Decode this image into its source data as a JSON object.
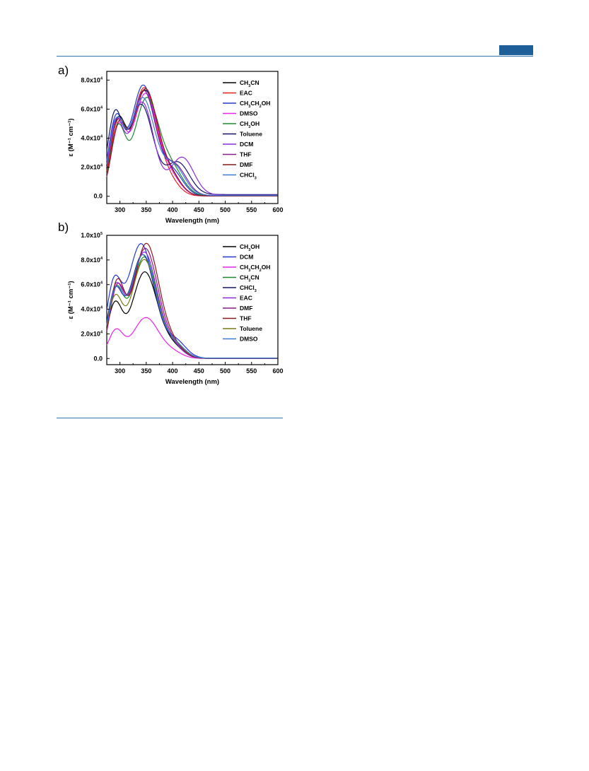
{
  "header": {
    "accent": "#1f5f99"
  },
  "figure": {
    "panels": [
      {
        "label": "a)"
      },
      {
        "label": "b)"
      }
    ]
  },
  "chart_data": [
    {
      "type": "line",
      "panel": "a)",
      "xlabel": "Wavelength (nm)",
      "ylabel": "ε (M⁻¹ cm⁻¹)",
      "xlim": [
        275,
        600
      ],
      "ylim": [
        -5000,
        86000
      ],
      "xticks": [
        "300",
        "350",
        "400",
        "450",
        "500",
        "550",
        "600"
      ],
      "yticks": [
        {
          "value": 0,
          "base": "0.0",
          "exp": ""
        },
        {
          "value": 20000,
          "base": "2.0x10",
          "exp": "4"
        },
        {
          "value": 40000,
          "base": "4.0x10",
          "exp": "4"
        },
        {
          "value": 60000,
          "base": "6.0x10",
          "exp": "4"
        },
        {
          "value": 80000,
          "base": "8.0x10",
          "exp": "4"
        }
      ],
      "legend_position": "top-right",
      "series": [
        {
          "name": "CH3CN",
          "parts": [
            [
              "CH",
              ""
            ],
            [
              "3",
              "sub"
            ],
            [
              "CN",
              ""
            ]
          ],
          "color": "#000000",
          "shoulder": [
            296,
            48000,
            14
          ],
          "peak": [
            347,
            72000,
            23
          ],
          "tail": [
            395,
            14000,
            20
          ],
          "base": 300
        },
        {
          "name": "EAC",
          "parts": [
            [
              "EAC",
              ""
            ]
          ],
          "color": "#e8201c",
          "shoulder": [
            295,
            46000,
            14
          ],
          "peak": [
            346,
            74000,
            23
          ],
          "tail": [
            392,
            10000,
            20
          ],
          "base": 200
        },
        {
          "name": "CH3CH2OH",
          "parts": [
            [
              "CH",
              ""
            ],
            [
              "3",
              "sub"
            ],
            [
              "CH",
              ""
            ],
            [
              "2",
              "sub"
            ],
            [
              "OH",
              ""
            ]
          ],
          "color": "#2438d8",
          "shoulder": [
            292,
            50000,
            14
          ],
          "peak": [
            344,
            76000,
            23
          ],
          "tail": [
            400,
            16000,
            20
          ],
          "base": 300
        },
        {
          "name": "DMSO",
          "parts": [
            [
              "DMSO",
              ""
            ]
          ],
          "color": "#ee22ee",
          "shoulder": [
            297,
            44000,
            14
          ],
          "peak": [
            348,
            70000,
            23
          ],
          "tail": [
            396,
            12000,
            20
          ],
          "base": 200
        },
        {
          "name": "CH3OH",
          "parts": [
            [
              "CH",
              ""
            ],
            [
              "3",
              "sub"
            ],
            [
              "OH",
              ""
            ]
          ],
          "color": "#1e8a2e",
          "shoulder": [
            296,
            45000,
            14
          ],
          "peak": [
            350,
            66000,
            23
          ],
          "tail": [
            398,
            18000,
            22
          ],
          "base": 300
        },
        {
          "name": "Toluene",
          "parts": [
            [
              "Toluene",
              ""
            ]
          ],
          "color": "#141466",
          "shoulder": [
            290,
            52000,
            14
          ],
          "peak": [
            340,
            62000,
            23
          ],
          "tail": [
            410,
            22000,
            22
          ],
          "base": 1200
        },
        {
          "name": "DCM",
          "parts": [
            [
              "DCM",
              ""
            ]
          ],
          "color": "#8a2be2",
          "shoulder": [
            292,
            48000,
            14
          ],
          "peak": [
            342,
            64000,
            22
          ],
          "tail": [
            418,
            26000,
            22
          ],
          "base": 800
        },
        {
          "name": "THF",
          "parts": [
            [
              "THF",
              ""
            ]
          ],
          "color": "#8b1a8b",
          "shoulder": [
            294,
            47000,
            14
          ],
          "peak": [
            345,
            72000,
            23
          ],
          "tail": [
            405,
            20000,
            21
          ],
          "base": 500
        },
        {
          "name": "DMF",
          "parts": [
            [
              "DMF",
              ""
            ]
          ],
          "color": "#8b1a1a",
          "shoulder": [
            297,
            45000,
            14
          ],
          "peak": [
            348,
            73000,
            23
          ],
          "tail": [
            396,
            13000,
            20
          ],
          "base": 300
        },
        {
          "name": "CHCl3",
          "parts": [
            [
              "CHCl",
              ""
            ],
            [
              "3",
              "sub"
            ]
          ],
          "color": "#3a7ad8",
          "shoulder": [
            293,
            47000,
            14
          ],
          "peak": [
            343,
            67000,
            23
          ],
          "tail": [
            402,
            20000,
            21
          ],
          "base": 600
        }
      ]
    },
    {
      "type": "line",
      "panel": "b)",
      "xlabel": "Wavelength (nm)",
      "ylabel": "ε (M⁻¹ cm⁻¹)",
      "xlim": [
        275,
        600
      ],
      "ylim": [
        -5000,
        100000
      ],
      "xticks": [
        "300",
        "350",
        "400",
        "450",
        "500",
        "550",
        "600"
      ],
      "yticks": [
        {
          "value": 0,
          "base": "0.0",
          "exp": ""
        },
        {
          "value": 20000,
          "base": "2.0x10",
          "exp": "4"
        },
        {
          "value": 40000,
          "base": "4.0x10",
          "exp": "4"
        },
        {
          "value": 60000,
          "base": "6.0x10",
          "exp": "4"
        },
        {
          "value": 80000,
          "base": "8.0x10",
          "exp": "4"
        },
        {
          "value": 100000,
          "base": "1.0x10",
          "exp": "5"
        }
      ],
      "legend_position": "top-right",
      "series": [
        {
          "name": "CH3OH",
          "parts": [
            [
              "CH",
              ""
            ],
            [
              "3",
              "sub"
            ],
            [
              "OH",
              ""
            ]
          ],
          "color": "#000000",
          "shoulder": [
            290,
            42000,
            14
          ],
          "peak": [
            347,
            70000,
            24
          ],
          "tail": [
            400,
            9000,
            20
          ],
          "base": 100
        },
        {
          "name": "DCM",
          "parts": [
            [
              "DCM",
              ""
            ]
          ],
          "color": "#2438d8",
          "shoulder": [
            288,
            55000,
            14
          ],
          "peak": [
            340,
            93000,
            25
          ],
          "tail": [
            405,
            14000,
            20
          ],
          "base": 200
        },
        {
          "name": "CH3CH2OH",
          "parts": [
            [
              "CH",
              ""
            ],
            [
              "3",
              "sub"
            ],
            [
              "CH",
              ""
            ],
            [
              "2",
              "sub"
            ],
            [
              "OH",
              ""
            ]
          ],
          "color": "#ee22ee",
          "shoulder": [
            292,
            22000,
            14
          ],
          "peak": [
            349,
            33000,
            24
          ],
          "tail": [
            398,
            5000,
            20
          ],
          "base": 0
        },
        {
          "name": "CH3CN",
          "parts": [
            [
              "CH",
              ""
            ],
            [
              "3",
              "sub"
            ],
            [
              "CN",
              ""
            ]
          ],
          "color": "#1e8a2e",
          "shoulder": [
            292,
            52000,
            14
          ],
          "peak": [
            346,
            82000,
            24
          ],
          "tail": [
            398,
            10000,
            20
          ],
          "base": 100
        },
        {
          "name": "CHCl3",
          "parts": [
            [
              "CHCl",
              ""
            ],
            [
              "3",
              "sub"
            ]
          ],
          "color": "#141466",
          "shoulder": [
            290,
            50000,
            14
          ],
          "peak": [
            343,
            84000,
            24
          ],
          "tail": [
            402,
            12000,
            20
          ],
          "base": 200
        },
        {
          "name": "EAC",
          "parts": [
            [
              "EAC",
              ""
            ]
          ],
          "color": "#8a2be2",
          "shoulder": [
            292,
            54000,
            14
          ],
          "peak": [
            346,
            86000,
            24
          ],
          "tail": [
            398,
            10000,
            20
          ],
          "base": 100
        },
        {
          "name": "DMF",
          "parts": [
            [
              "DMF",
              ""
            ]
          ],
          "color": "#8b1a8b",
          "shoulder": [
            294,
            53000,
            14
          ],
          "peak": [
            348,
            89000,
            24
          ],
          "tail": [
            400,
            10000,
            20
          ],
          "base": 100
        },
        {
          "name": "THF",
          "parts": [
            [
              "THF",
              ""
            ]
          ],
          "color": "#8b1a1a",
          "shoulder": [
            294,
            58000,
            14
          ],
          "peak": [
            350,
            93000,
            24
          ],
          "tail": [
            400,
            10000,
            20
          ],
          "base": 100
        },
        {
          "name": "Toluene",
          "parts": [
            [
              "Toluene",
              ""
            ]
          ],
          "color": "#7a7a12",
          "shoulder": [
            290,
            46000,
            14
          ],
          "peak": [
            346,
            80000,
            24
          ],
          "tail": [
            402,
            11000,
            20
          ],
          "base": 200
        },
        {
          "name": "DMSO",
          "parts": [
            [
              "DMSO",
              ""
            ]
          ],
          "color": "#3a7ad8",
          "shoulder": [
            291,
            50000,
            14
          ],
          "peak": [
            344,
            84000,
            24
          ],
          "tail": [
            402,
            12000,
            20
          ],
          "base": 200
        }
      ]
    }
  ]
}
